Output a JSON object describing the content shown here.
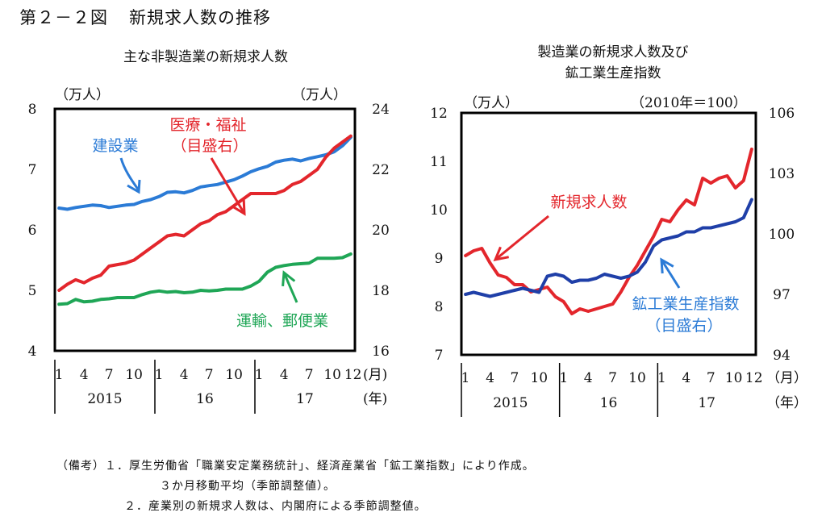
{
  "figure": {
    "number": "第２－２図",
    "title": "新規求人数の推移"
  },
  "colors": {
    "blue": "#2b7bd6",
    "red": "#e3262c",
    "green": "#1fa656",
    "navy": "#1f3fa8"
  },
  "chart_data": [
    {
      "type": "line",
      "title": "主な非製造業の新規求人数",
      "left_unit": "（万人）",
      "right_unit": "（万人）",
      "left_ylim": [
        4,
        8
      ],
      "right_ylim": [
        16,
        24
      ],
      "left_ticks": [
        "4",
        "5",
        "6",
        "7",
        "8"
      ],
      "right_ticks": [
        "16",
        "18",
        "20",
        "22",
        "24"
      ],
      "x_tick_labels": [
        "1",
        "4",
        "7",
        "10",
        "1",
        "4",
        "7",
        "10",
        "1",
        "4",
        "7",
        "10",
        "12"
      ],
      "x_tick_months": [
        1,
        4,
        7,
        10,
        13,
        16,
        19,
        22,
        25,
        28,
        31,
        34,
        36
      ],
      "month_unit": "(月)",
      "year_unit": "(年)",
      "years": [
        "2015",
        "16",
        "17"
      ],
      "series": [
        {
          "name": "建設業",
          "axis": "left",
          "color": "#2b7bd6",
          "values": [
            6.36,
            6.34,
            6.37,
            6.39,
            6.41,
            6.4,
            6.37,
            6.39,
            6.41,
            6.42,
            6.47,
            6.5,
            6.55,
            6.62,
            6.63,
            6.61,
            6.65,
            6.71,
            6.73,
            6.75,
            6.79,
            6.83,
            6.89,
            6.96,
            7.01,
            7.05,
            7.12,
            7.15,
            7.17,
            7.14,
            7.18,
            7.21,
            7.24,
            7.29,
            7.39,
            7.53
          ]
        },
        {
          "name": "医療・福祉",
          "axis": "right",
          "color": "#e3262c",
          "values": [
            18.0,
            18.2,
            18.35,
            18.25,
            18.4,
            18.5,
            18.8,
            18.85,
            18.9,
            19.0,
            19.2,
            19.4,
            19.6,
            19.8,
            19.85,
            19.8,
            20.0,
            20.2,
            20.3,
            20.5,
            20.6,
            20.8,
            21.0,
            21.2,
            21.2,
            21.2,
            21.2,
            21.3,
            21.5,
            21.6,
            21.8,
            22.0,
            22.4,
            22.7,
            22.9,
            23.1
          ]
        },
        {
          "name": "運輸、郵便業",
          "axis": "left",
          "color": "#1fa656",
          "values": [
            4.77,
            4.78,
            4.85,
            4.81,
            4.82,
            4.85,
            4.86,
            4.88,
            4.88,
            4.88,
            4.93,
            4.97,
            4.99,
            4.97,
            4.98,
            4.96,
            4.97,
            5.0,
            4.99,
            5.0,
            5.02,
            5.02,
            5.02,
            5.07,
            5.15,
            5.3,
            5.38,
            5.41,
            5.43,
            5.44,
            5.45,
            5.53,
            5.53,
            5.53,
            5.54,
            5.6
          ]
        }
      ],
      "labels": {
        "construction": "建設業",
        "medical": "医療・福祉",
        "medical_note": "（目盛右）",
        "transport": "運輸、郵便業"
      }
    },
    {
      "type": "line",
      "title_line1": "製造業の新規求人数及び",
      "title_line2": "鉱工業生産指数",
      "left_unit": "（万人）",
      "right_unit": "（2010年＝100）",
      "left_ylim": [
        7,
        12
      ],
      "right_ylim": [
        94,
        106
      ],
      "left_ticks": [
        "7",
        "8",
        "9",
        "10",
        "11",
        "12"
      ],
      "right_ticks": [
        "94",
        "97",
        "100",
        "103",
        "106"
      ],
      "x_tick_labels": [
        "1",
        "4",
        "7",
        "10",
        "1",
        "4",
        "7",
        "10",
        "1",
        "4",
        "7",
        "10",
        "12"
      ],
      "x_tick_months": [
        1,
        4,
        7,
        10,
        13,
        16,
        19,
        22,
        25,
        28,
        31,
        34,
        36
      ],
      "month_unit": "（月）",
      "year_unit": "（年）",
      "years": [
        "2015",
        "16",
        "17"
      ],
      "series": [
        {
          "name": "新規求人数",
          "axis": "left",
          "color": "#e3262c",
          "values": [
            9.05,
            9.15,
            9.2,
            8.9,
            8.65,
            8.6,
            8.45,
            8.45,
            8.3,
            8.35,
            8.4,
            8.2,
            8.1,
            7.85,
            7.95,
            7.9,
            7.95,
            8.0,
            8.05,
            8.3,
            8.6,
            8.85,
            9.15,
            9.45,
            9.8,
            9.75,
            10.0,
            10.2,
            10.1,
            10.65,
            10.55,
            10.65,
            10.7,
            10.45,
            10.6,
            11.25
          ]
        },
        {
          "name": "鉱工業生産指数",
          "axis": "right",
          "color": "#1f3fa8",
          "values": [
            97.0,
            97.1,
            97.0,
            96.9,
            97.0,
            97.1,
            97.2,
            97.3,
            97.2,
            97.1,
            97.9,
            98.0,
            97.9,
            97.6,
            97.7,
            97.7,
            97.8,
            98.0,
            97.9,
            97.8,
            97.9,
            98.1,
            98.6,
            99.4,
            99.7,
            99.8,
            99.9,
            100.1,
            100.1,
            100.3,
            100.3,
            100.4,
            100.5,
            100.6,
            100.8,
            101.7
          ]
        }
      ],
      "labels": {
        "new_offers": "新規求人数",
        "production": "鉱工業生産指数",
        "production_note": "（目盛右）"
      }
    }
  ],
  "notes": {
    "line1": "（備考）１．厚生労働省「職業安定業務統計」、経済産業省「鉱工業指数」により作成。",
    "line2": "３か月移動平均（季節調整値）。",
    "line3": "２．産業別の新規求人数は、内閣府による季節調整値。"
  }
}
